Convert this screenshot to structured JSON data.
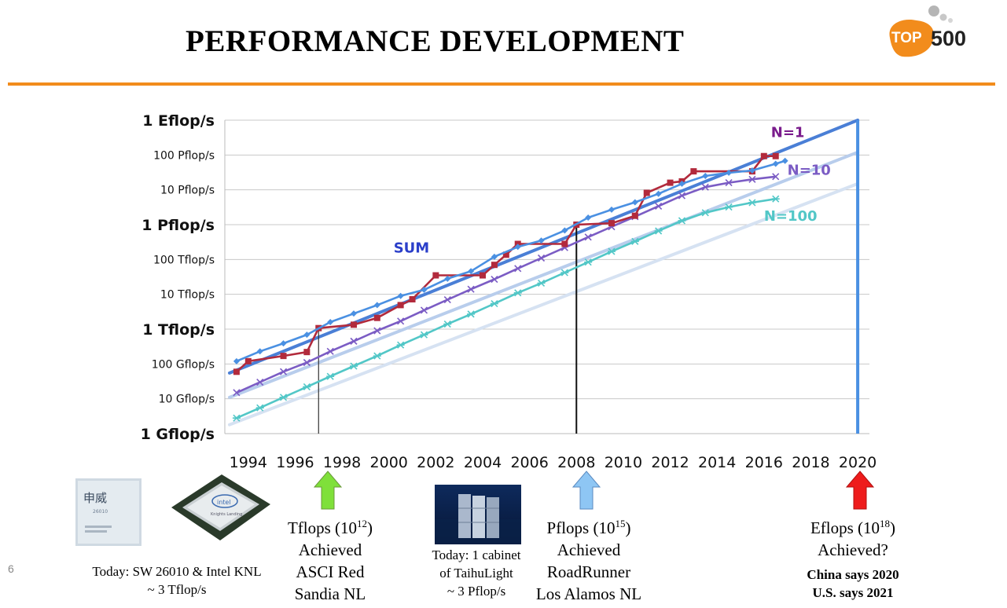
{
  "slide": {
    "title": "PERFORMANCE DEVELOPMENT",
    "number": "6"
  },
  "logo": {
    "top": "TOP",
    "num": "500"
  },
  "chart_data": {
    "type": "line",
    "title": "",
    "y_scale": "log",
    "ylim_flops": [
      1000000000.0,
      1e+18
    ],
    "y_ticks": [
      {
        "label": "1 Gflop/s",
        "value": 1000000000.0,
        "major": true
      },
      {
        "label": "10 Gflop/s",
        "value": 10000000000.0,
        "major": false
      },
      {
        "label": "100 Gflop/s",
        "value": 100000000000.0,
        "major": false
      },
      {
        "label": "1 Tflop/s",
        "value": 1000000000000.0,
        "major": true
      },
      {
        "label": "10 Tflop/s",
        "value": 10000000000000.0,
        "major": false
      },
      {
        "label": "100 Tflop/s",
        "value": 100000000000000.0,
        "major": false
      },
      {
        "label": "1 Pflop/s",
        "value": 1000000000000000.0,
        "major": true
      },
      {
        "label": "10 Pflop/s",
        "value": 1e+16,
        "major": false
      },
      {
        "label": "100 Pflop/s",
        "value": 1e+17,
        "major": false
      },
      {
        "label": "1 Eflop/s",
        "value": 1e+18,
        "major": true
      }
    ],
    "x_ticks": [
      "1994",
      "1996",
      "1998",
      "2000",
      "2002",
      "2004",
      "2006",
      "2008",
      "2010",
      "2012",
      "2014",
      "2016",
      "2018",
      "2020"
    ],
    "xlim": [
      1993,
      2020.5
    ],
    "series": [
      {
        "name": "SUM",
        "color": "#4a90e2",
        "marker": "diamond",
        "points": [
          [
            1993.5,
            120000000000.0
          ],
          [
            1994.5,
            230000000000.0
          ],
          [
            1995.5,
            390000000000.0
          ],
          [
            1996.5,
            690000000000.0
          ],
          [
            1997.5,
            1600000000000.0
          ],
          [
            1998.5,
            2800000000000.0
          ],
          [
            1999.5,
            4900000000000.0
          ],
          [
            2000.5,
            9000000000000.0
          ],
          [
            2001.5,
            13500000000000.0
          ],
          [
            2002.5,
            28000000000000.0
          ],
          [
            2003.5,
            46000000000000.0
          ],
          [
            2004.5,
            120000000000000.0
          ],
          [
            2005.5,
            230000000000000.0
          ],
          [
            2006.5,
            350000000000000.0
          ],
          [
            2007.5,
            680000000000000.0
          ],
          [
            2008.5,
            1600000000000000.0
          ],
          [
            2009.5,
            2700000000000000.0
          ],
          [
            2010.5,
            4400000000000000.0
          ],
          [
            2011.5,
            7700000000000000.0
          ],
          [
            2012.5,
            1.5e+16
          ],
          [
            2013.5,
            2.5e+16
          ],
          [
            2014.5,
            3.1e+16
          ],
          [
            2015.5,
            3.6e+16
          ],
          [
            2016.5,
            5.6e+16
          ],
          [
            2016.9,
            6.8e+16
          ]
        ]
      },
      {
        "name": "N=1",
        "color": "#b22a3c",
        "marker": "square",
        "points": [
          [
            1993.5,
            59600000000.0
          ],
          [
            1994.0,
            120000000000.0
          ],
          [
            1995.5,
            170000000000.0
          ],
          [
            1996.5,
            220000000000.0
          ],
          [
            1997.0,
            1070000000000.0
          ],
          [
            1998.5,
            1340000000000.0
          ],
          [
            1999.5,
            2100000000000.0
          ],
          [
            2000.5,
            4900000000000.0
          ],
          [
            2001.0,
            7200000000000.0
          ],
          [
            2002.0,
            35000000000000.0
          ],
          [
            2004.0,
            35000000000000.0
          ],
          [
            2004.5,
            70000000000000.0
          ],
          [
            2005.0,
            137000000000000.0
          ],
          [
            2005.5,
            280000000000000.0
          ],
          [
            2007.5,
            280000000000000.0
          ],
          [
            2008.0,
            1000000000000000.0
          ],
          [
            2009.5,
            1100000000000000.0
          ],
          [
            2010.5,
            1800000000000000.0
          ],
          [
            2011.0,
            8200000000000000.0
          ],
          [
            2012.0,
            1.6e+16
          ],
          [
            2012.5,
            1.75e+16
          ],
          [
            2013.0,
            3.4e+16
          ],
          [
            2015.5,
            3.4e+16
          ],
          [
            2016.0,
            9.3e+16
          ],
          [
            2016.5,
            9.3e+16
          ]
        ]
      },
      {
        "name": "N=10",
        "color": "#7b5cc4",
        "marker": "x",
        "points": [
          [
            1993.5,
            15000000000.0
          ],
          [
            1994.5,
            30000000000.0
          ],
          [
            1995.5,
            60000000000.0
          ],
          [
            1996.5,
            110000000000.0
          ],
          [
            1997.5,
            230000000000.0
          ],
          [
            1998.5,
            450000000000.0
          ],
          [
            1999.5,
            900000000000.0
          ],
          [
            2000.5,
            1700000000000.0
          ],
          [
            2001.5,
            3500000000000.0
          ],
          [
            2002.5,
            7000000000000.0
          ],
          [
            2003.5,
            14000000000000.0
          ],
          [
            2004.5,
            27000000000000.0
          ],
          [
            2005.5,
            55000000000000.0
          ],
          [
            2006.5,
            110000000000000.0
          ],
          [
            2007.5,
            220000000000000.0
          ],
          [
            2008.5,
            440000000000000.0
          ],
          [
            2009.5,
            870000000000000.0
          ],
          [
            2010.5,
            1700000000000000.0
          ],
          [
            2011.5,
            3400000000000000.0
          ],
          [
            2012.5,
            6800000000000000.0
          ],
          [
            2013.5,
            1.2e+16
          ],
          [
            2014.5,
            1.6e+16
          ],
          [
            2015.5,
            2e+16
          ],
          [
            2016.5,
            2.4e+16
          ]
        ]
      },
      {
        "name": "N=100",
        "color": "#52c7c7",
        "marker": "star",
        "points": [
          [
            1993.5,
            2800000000.0
          ],
          [
            1994.5,
            5500000000.0
          ],
          [
            1995.5,
            11000000000.0
          ],
          [
            1996.5,
            22000000000.0
          ],
          [
            1997.5,
            44000000000.0
          ],
          [
            1998.5,
            87000000000.0
          ],
          [
            1999.5,
            170000000000.0
          ],
          [
            2000.5,
            350000000000.0
          ],
          [
            2001.5,
            690000000000.0
          ],
          [
            2002.5,
            1400000000000.0
          ],
          [
            2003.5,
            2700000000000.0
          ],
          [
            2004.5,
            5400000000000.0
          ],
          [
            2005.5,
            11000000000000.0
          ],
          [
            2006.5,
            21000000000000.0
          ],
          [
            2007.5,
            42000000000000.0
          ],
          [
            2008.5,
            84000000000000.0
          ],
          [
            2009.5,
            170000000000000.0
          ],
          [
            2010.5,
            330000000000000.0
          ],
          [
            2011.5,
            660000000000000.0
          ],
          [
            2012.5,
            1300000000000000.0
          ],
          [
            2013.5,
            2200000000000000.0
          ],
          [
            2014.5,
            3200000000000000.0
          ],
          [
            2015.5,
            4300000000000000.0
          ],
          [
            2016.5,
            5500000000000000.0
          ]
        ]
      }
    ],
    "trend_lines": [
      {
        "name": "N=1 trend",
        "color": "#4a7fd6",
        "from": [
          1993.2,
          55000000000.0
        ],
        "to": [
          2020,
          1e+18
        ]
      },
      {
        "name": "N=10 trend",
        "color": "#b8cdec",
        "from": [
          1993.2,
          11000000000.0
        ],
        "to": [
          2020,
          1.2e+17
        ]
      },
      {
        "name": "N=100 trend",
        "color": "#d6e2f2",
        "from": [
          1993.2,
          1800000000.0
        ],
        "to": [
          2020,
          1.5e+16
        ]
      }
    ],
    "vertical_markers": [
      {
        "year": 1997.0,
        "color": "#333333"
      },
      {
        "year": 2008.0,
        "color": "#111111"
      },
      {
        "year": 2020.0,
        "color": "#4a90e2"
      }
    ],
    "labels": {
      "sum": {
        "text": "SUM",
        "color": "#2b3fc9"
      },
      "n1": {
        "text": "N=1",
        "color": "#7a1c8c"
      },
      "n10": {
        "text": "N=10",
        "color": "#7b5cc4"
      },
      "n100": {
        "text": "N=100",
        "color": "#52c7c7"
      }
    }
  },
  "captions": {
    "today_chips": {
      "line1": "Today: SW 26010 &  Intel KNL",
      "line2": "~ 3 Tflop/s"
    },
    "tflops": {
      "line1_base": "Tflops (10",
      "line1_exp": "12",
      "line1_end": ")",
      "line2": "Achieved",
      "line3": "ASCI Red",
      "line4": "Sandia NL"
    },
    "today_cabinet": {
      "line1": "Today: 1 cabinet",
      "line2": "of TaihuLight",
      "line3": "~ 3 Pflop/s"
    },
    "pflops": {
      "line1_base": "Pflops (10",
      "line1_exp": "15",
      "line1_end": ")",
      "line2": "Achieved",
      "line3": "RoadRunner",
      "line4": "Los Alamos NL"
    },
    "eflops": {
      "line1_base": "Eflops (10",
      "line1_exp": "18",
      "line1_end": ")",
      "line2": "Achieved?",
      "line3": "China says 2020",
      "line4": "U.S. says 2021"
    }
  },
  "images": {
    "sw_chip": {
      "line1": "申威",
      "line2": "26010"
    },
    "knl_chip": {
      "line1": "intel",
      "line2": "Knights Landing"
    }
  },
  "arrows": {
    "tflops": {
      "color": "#7fe03a"
    },
    "pflops": {
      "color": "#8ec6f4"
    },
    "eflops": {
      "color": "#ee1c1c"
    }
  }
}
